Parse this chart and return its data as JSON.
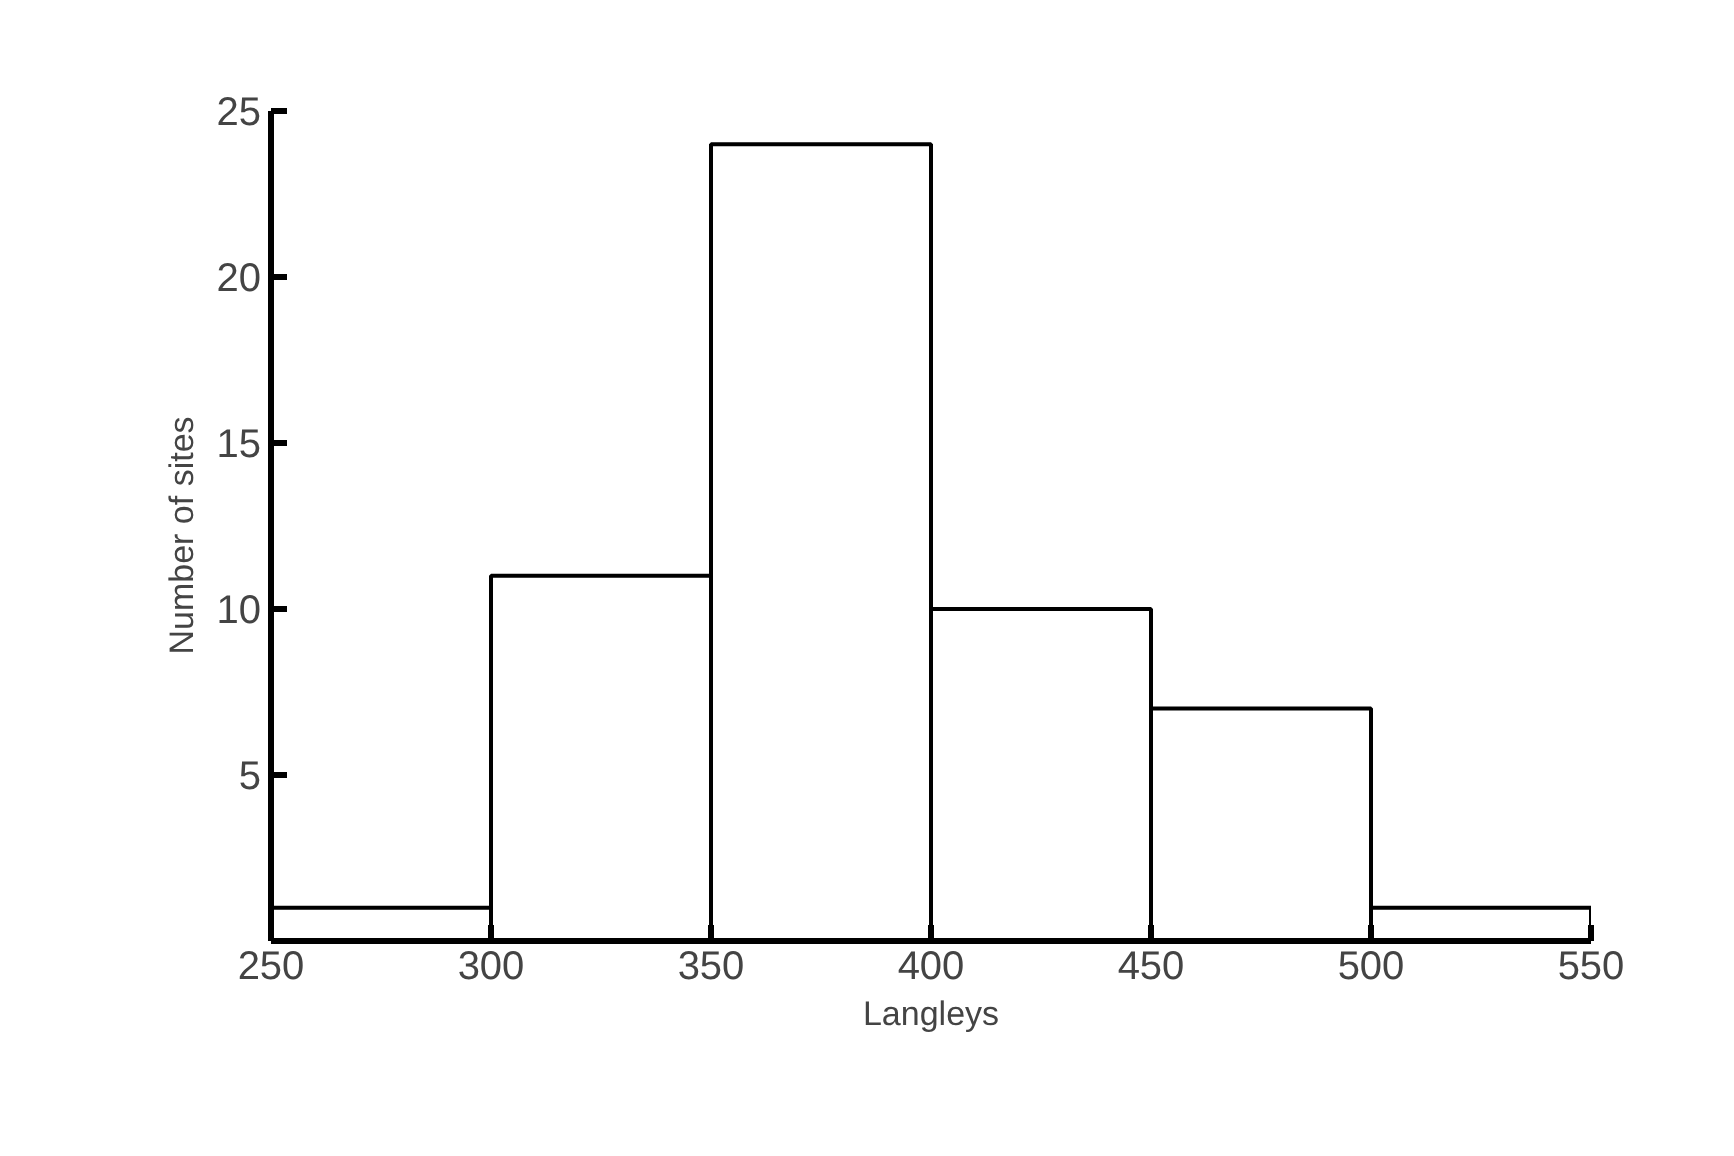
{
  "chart_data": {
    "type": "histogram",
    "xlabel": "Langleys",
    "ylabel": "Number  of  sites",
    "bins": [
      250,
      300,
      350,
      400,
      450,
      500,
      550
    ],
    "values": [
      1,
      11,
      24,
      10,
      7,
      1
    ],
    "color": "#ffffff",
    "xlim": [
      250,
      550
    ],
    "ylim": [
      0,
      25
    ],
    "xticks": [
      250,
      300,
      350,
      400,
      450,
      500,
      550
    ],
    "yticks": [
      5,
      10,
      15,
      20,
      25
    ],
    "grid": false
  }
}
